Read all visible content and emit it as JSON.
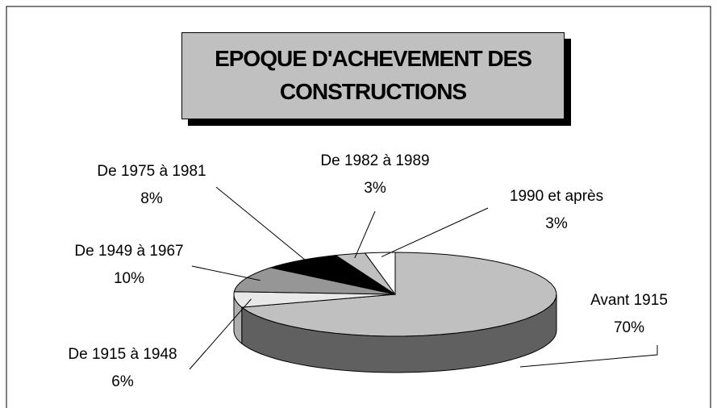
{
  "chart_data": {
    "type": "pie3d",
    "title": "EPOQUE D'ACHEVEMENT DES CONSTRUCTIONS",
    "categories": [
      "Avant 1915",
      "De 1915 à 1948",
      "De 1949 à 1967",
      "De 1975 à 1981",
      "De 1982 à 1989",
      "1990 et après"
    ],
    "values": [
      70,
      6,
      10,
      8,
      3,
      3
    ],
    "value_labels": [
      "70%",
      "6%",
      "10%",
      "8%",
      "3%",
      "3%"
    ],
    "colors": [
      "#c0c0c0",
      "#e8e8e8",
      "#969696",
      "#000000",
      "#c0c0c0",
      "#ffffff"
    ]
  }
}
